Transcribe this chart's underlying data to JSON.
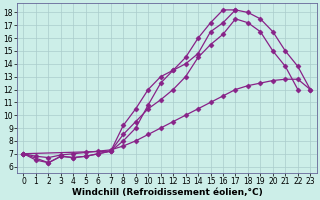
{
  "background_color": "#cceee8",
  "grid_color": "#aacccc",
  "line_color": "#882288",
  "marker": "D",
  "markersize": 2.5,
  "linewidth": 0.9,
  "xlabel": "Windchill (Refroidissement éolien,°C)",
  "xlabel_fontsize": 6.5,
  "tick_fontsize": 5.5,
  "xlim": [
    -0.5,
    23.5
  ],
  "ylim": [
    5.5,
    18.7
  ],
  "yticks": [
    6,
    7,
    8,
    9,
    10,
    11,
    12,
    13,
    14,
    15,
    16,
    17,
    18
  ],
  "xticks": [
    0,
    1,
    2,
    3,
    4,
    5,
    6,
    7,
    8,
    9,
    10,
    11,
    12,
    13,
    14,
    15,
    16,
    17,
    18,
    19,
    20,
    21,
    22,
    23
  ],
  "lines": [
    {
      "x": [
        0,
        1,
        2,
        3,
        4,
        5,
        6,
        7,
        8,
        9,
        10,
        11,
        12,
        13,
        14,
        15,
        16,
        17
      ],
      "y": [
        7.0,
        6.5,
        6.3,
        6.8,
        6.7,
        6.8,
        7.0,
        7.2,
        9.2,
        10.5,
        12.0,
        13.0,
        13.5,
        14.0,
        14.8,
        16.5,
        17.2,
        18.2
      ]
    },
    {
      "x": [
        0,
        1,
        2,
        3,
        4,
        5,
        6,
        7,
        8,
        9,
        10,
        11,
        12,
        13,
        14,
        15,
        16,
        17,
        18,
        19,
        20,
        21,
        22,
        23
      ],
      "y": [
        7.0,
        6.8,
        6.7,
        6.9,
        7.0,
        7.1,
        7.2,
        7.3,
        7.6,
        8.0,
        8.5,
        9.0,
        9.5,
        10.0,
        10.5,
        11.0,
        11.5,
        12.0,
        12.3,
        12.5,
        12.7,
        12.8,
        12.8,
        12.0
      ]
    },
    {
      "x": [
        0,
        2,
        3,
        4,
        5,
        6,
        7,
        8,
        9,
        10,
        11,
        12,
        13,
        14,
        15,
        16,
        17,
        18,
        19,
        20,
        21,
        22,
        23
      ],
      "y": [
        7.0,
        6.3,
        6.8,
        6.7,
        6.8,
        7.0,
        7.2,
        8.0,
        9.0,
        10.8,
        12.5,
        13.5,
        14.5,
        16.0,
        17.2,
        18.2,
        18.2,
        18.0,
        17.5,
        16.5,
        15.0,
        13.8,
        12.0
      ]
    },
    {
      "x": [
        0,
        7,
        8,
        9,
        10,
        11,
        12,
        13,
        14,
        15,
        16,
        17,
        18,
        19,
        20,
        21,
        22
      ],
      "y": [
        7.0,
        7.2,
        8.5,
        9.5,
        10.5,
        11.2,
        12.0,
        13.0,
        14.5,
        15.5,
        16.3,
        17.5,
        17.2,
        16.5,
        15.0,
        13.8,
        12.0
      ]
    }
  ]
}
